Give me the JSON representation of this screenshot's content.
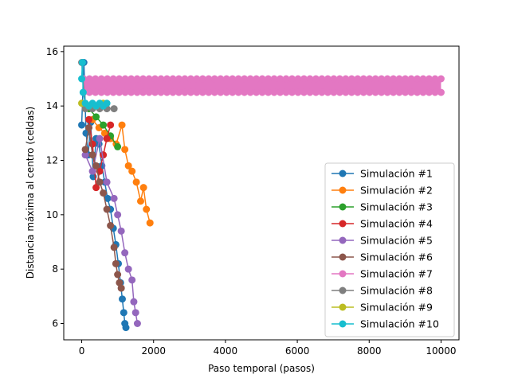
{
  "chart_data": {
    "type": "line",
    "title": "",
    "xlabel": "Paso temporal (pasos)",
    "ylabel": "Distancia máxima al centro (celdas)",
    "xlim": [
      -500,
      10500
    ],
    "ylim": [
      5.4,
      16.2
    ],
    "xticks": [
      0,
      2000,
      4000,
      6000,
      8000,
      10000
    ],
    "yticks": [
      6,
      8,
      10,
      12,
      14,
      16
    ],
    "grid": false,
    "legend_position": "lower-right",
    "marker": "circle",
    "series": [
      {
        "name": "Simulación #1",
        "color": "#1f77b4",
        "x": [
          0,
          60,
          120,
          180,
          250,
          320,
          400,
          480,
          560,
          640,
          720,
          800,
          880,
          950,
          1020,
          1080,
          1130,
          1170,
          1200,
          1230
        ],
        "y": [
          13.3,
          15.6,
          13.0,
          12.2,
          13.4,
          11.4,
          12.8,
          12.6,
          11.8,
          11.2,
          10.6,
          10.2,
          9.5,
          8.9,
          8.2,
          7.5,
          6.9,
          6.4,
          6.0,
          5.85
        ]
      },
      {
        "name": "Simulación #2",
        "color": "#ff7f0e",
        "x": [
          300,
          480,
          640,
          800,
          960,
          1120,
          1200,
          1300,
          1400,
          1520,
          1640,
          1720,
          1800,
          1900
        ],
        "y": [
          13.5,
          13.2,
          13.0,
          12.8,
          12.6,
          13.3,
          12.4,
          11.8,
          11.6,
          11.2,
          10.5,
          11.0,
          10.2,
          9.7
        ]
      },
      {
        "name": "Simulación #3",
        "color": "#2ca02c",
        "x": [
          200,
          400,
          600,
          800,
          1000
        ],
        "y": [
          13.9,
          13.6,
          13.3,
          12.9,
          12.5
        ]
      },
      {
        "name": "Simulación #4",
        "color": "#d62728",
        "x": [
          200,
          300,
          400,
          500,
          600,
          700,
          800
        ],
        "y": [
          13.5,
          12.6,
          11.0,
          11.6,
          12.2,
          12.8,
          13.3
        ]
      },
      {
        "name": "Simulación #5",
        "color": "#9467bd",
        "x": [
          100,
          300,
          500,
          700,
          900,
          1000,
          1100,
          1200,
          1300,
          1400,
          1450,
          1500,
          1550
        ],
        "y": [
          12.2,
          11.6,
          12.8,
          11.2,
          10.6,
          10.0,
          9.4,
          8.6,
          8.0,
          7.6,
          6.8,
          6.4,
          6.0
        ]
      },
      {
        "name": "Simulación #6",
        "color": "#8c564b",
        "x": [
          100,
          200,
          300,
          400,
          500,
          600,
          700,
          800,
          900,
          950,
          1000,
          1050,
          1100
        ],
        "y": [
          12.4,
          13.2,
          12.2,
          11.8,
          11.2,
          10.8,
          10.2,
          9.6,
          8.8,
          8.2,
          7.8,
          7.5,
          7.3
        ]
      },
      {
        "name": "Simulación #7",
        "color": "#e377c2",
        "x": [
          50,
          10000
        ],
        "y": [
          14.5,
          15.0
        ],
        "band": [
          14.5,
          15.0
        ]
      },
      {
        "name": "Simulación #8",
        "color": "#7f7f7f",
        "x": [
          0,
          100,
          300,
          500,
          700,
          900
        ],
        "y": [
          15.6,
          13.9,
          13.9,
          13.9,
          13.9,
          13.9
        ]
      },
      {
        "name": "Simulación #9",
        "color": "#bcbd22",
        "x": [
          0,
          200,
          400,
          600
        ],
        "y": [
          14.1,
          14.0,
          14.0,
          14.1
        ]
      },
      {
        "name": "Simulación #10",
        "color": "#17becf",
        "x": [
          0,
          20,
          40,
          100,
          200,
          300,
          400,
          500,
          600,
          700
        ],
        "y": [
          15.0,
          15.6,
          14.5,
          14.1,
          14.0,
          14.1,
          14.0,
          14.1,
          14.0,
          14.1
        ]
      }
    ]
  }
}
